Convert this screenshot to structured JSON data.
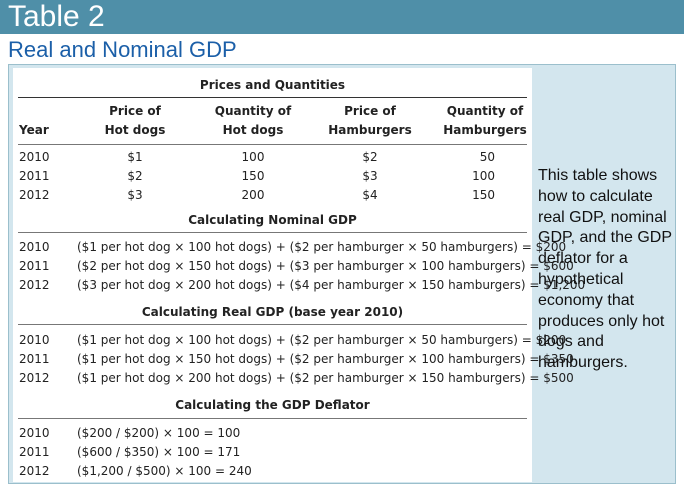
{
  "header": {
    "title": "Table 2",
    "subtitle": "Real and Nominal GDP"
  },
  "table": {
    "prices_title": "Prices and Quantities",
    "columns": {
      "year": "Year",
      "price_hotdogs_1": "Price of",
      "price_hotdogs_2": "Hot dogs",
      "qty_hotdogs_1": "Quantity of",
      "qty_hotdogs_2": "Hot dogs",
      "price_hamburgers_1": "Price of",
      "price_hamburgers_2": "Hamburgers",
      "qty_hamburgers_1": "Quantity of",
      "qty_hamburgers_2": "Hamburgers"
    },
    "rows": [
      {
        "year": "2010",
        "price_hotdogs": "$1",
        "qty_hotdogs": "100",
        "price_hamburgers": "$2",
        "qty_hamburgers": "50"
      },
      {
        "year": "2011",
        "price_hotdogs": "$2",
        "qty_hotdogs": "150",
        "price_hamburgers": "$3",
        "qty_hamburgers": "100"
      },
      {
        "year": "2012",
        "price_hotdogs": "$3",
        "qty_hotdogs": "200",
        "price_hamburgers": "$4",
        "qty_hamburgers": "150"
      }
    ],
    "nominal_title": "Calculating Nominal GDP",
    "nominal": [
      {
        "year": "2010",
        "calc": "($1 per hot dog × 100 hot dogs) + ($2 per hamburger × 50 hamburgers) = $200"
      },
      {
        "year": "2011",
        "calc": "($2 per hot dog × 150 hot dogs) + ($3 per hamburger × 100 hamburgers) = $600"
      },
      {
        "year": "2012",
        "calc": "($3 per hot dog × 200 hot dogs) + ($4 per hamburger × 150 hamburgers) = $1,200"
      }
    ],
    "real_title": "Calculating Real GDP (base year 2010)",
    "real": [
      {
        "year": "2010",
        "calc": "($1 per hot dog × 100 hot dogs) + ($2 per hamburger × 50 hamburgers) = $200"
      },
      {
        "year": "2011",
        "calc": "($1 per hot dog × 150 hot dogs) + ($2 per hamburger × 100 hamburgers) = $350"
      },
      {
        "year": "2012",
        "calc": "($1 per hot dog × 200 hot dogs) + ($2 per hamburger × 150 hamburgers) = $500"
      }
    ],
    "deflator_title": "Calculating the GDP Deflator",
    "deflator": [
      {
        "year": "2010",
        "calc": "($200 / $200) × 100 = 100"
      },
      {
        "year": "2011",
        "calc": "($600 / $350) × 100 = 171"
      },
      {
        "year": "2012",
        "calc": "($1,200 / $500) × 100 = 240"
      }
    ]
  },
  "side_note": "This table shows how to calculate real GDP, nominal GDP, and the GDP deflator for a hypothetical economy that produces only hot dogs and hamburgers."
}
